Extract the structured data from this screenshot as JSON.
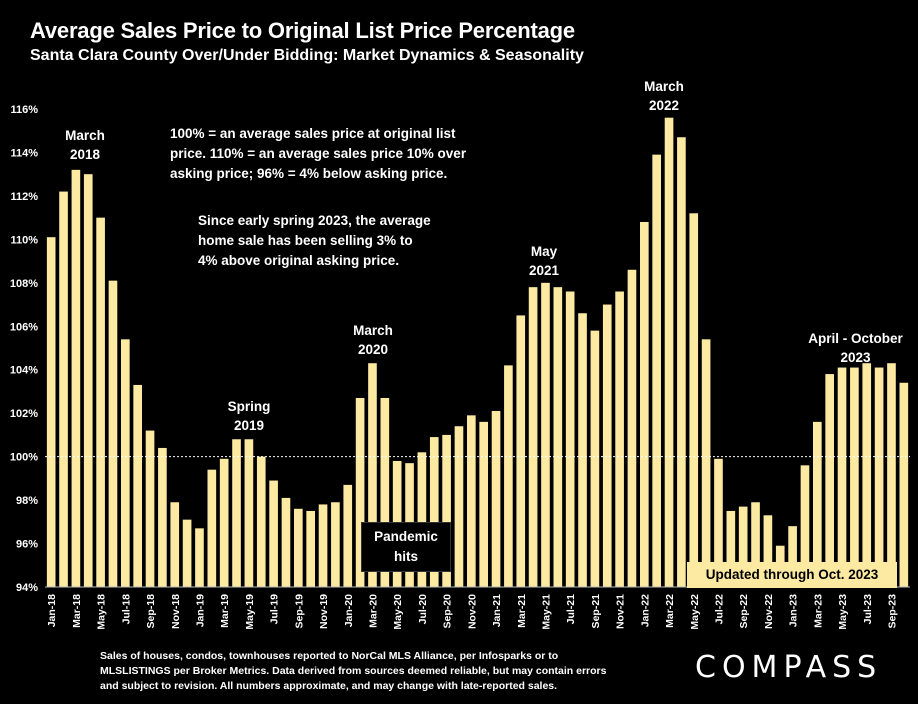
{
  "header": {
    "title": "Average Sales Price to Original List Price Percentage",
    "subtitle": "Santa Clara County Over/Under Bidding: Market Dynamics & Seasonality"
  },
  "annotations": {
    "march_2018": [
      "March",
      "2018"
    ],
    "spring_2019": [
      "Spring",
      "2019"
    ],
    "march_2020": [
      "March",
      "2020"
    ],
    "may_2021": [
      "May",
      "2021"
    ],
    "march_2022": [
      "March",
      "2022"
    ],
    "apr_oct_2023": [
      "April - October",
      "2023"
    ],
    "pandemic": [
      "Pandemic",
      "hits"
    ],
    "updated": "Updated through Oct. 2023"
  },
  "notes": {
    "note1": [
      "100% = an average sales price at original list",
      "price. 110% = an average sales price 10% over",
      "asking price; 96% = 4% below asking price."
    ],
    "note2": [
      "Since early spring 2023, the average",
      "home sale has been selling 3% to",
      "4% above original asking price."
    ]
  },
  "footer": {
    "lines": [
      "Sales of houses, condos, townhouses reported to NorCal MLS Alliance, per Infosparks or to",
      "MLSLISTINGS per Broker Metrics. Data derived from sources deemed reliable, but may contain errors",
      "and subject to revision. All numbers approximate, and may change with late-reported sales."
    ],
    "logo": "COMPASS"
  },
  "chart_data": {
    "type": "bar",
    "title": "Average Sales Price to Original List Price Percentage",
    "subtitle": "Santa Clara County Over/Under Bidding: Market Dynamics & Seasonality",
    "bar_color": "#fce9a2",
    "grid": false,
    "reference_line": 100,
    "ylim": [
      94,
      116
    ],
    "yticks": [
      "94%",
      "96%",
      "98%",
      "100%",
      "102%",
      "104%",
      "106%",
      "108%",
      "110%",
      "112%",
      "114%",
      "116%"
    ],
    "categories": [
      "Jan-18",
      "Feb-18",
      "Mar-18",
      "Apr-18",
      "May-18",
      "Jun-18",
      "Jul-18",
      "Aug-18",
      "Sep-18",
      "Oct-18",
      "Nov-18",
      "Dec-18",
      "Jan-19",
      "Feb-19",
      "Mar-19",
      "Apr-19",
      "May-19",
      "Jun-19",
      "Jul-19",
      "Aug-19",
      "Sep-19",
      "Oct-19",
      "Nov-19",
      "Dec-19",
      "Jan-20",
      "Feb-20",
      "Mar-20",
      "Apr-20",
      "May-20",
      "Jun-20",
      "Jul-20",
      "Aug-20",
      "Sep-20",
      "Oct-20",
      "Nov-20",
      "Dec-20",
      "Jan-21",
      "Feb-21",
      "Mar-21",
      "Apr-21",
      "May-21",
      "Jun-21",
      "Jul-21",
      "Aug-21",
      "Sep-21",
      "Oct-21",
      "Nov-21",
      "Dec-21",
      "Jan-22",
      "Feb-22",
      "Mar-22",
      "Apr-22",
      "May-22",
      "Jun-22",
      "Jul-22",
      "Aug-22",
      "Sep-22",
      "Oct-22",
      "Nov-22",
      "Dec-22",
      "Jan-23",
      "Feb-23",
      "Mar-23",
      "Apr-23",
      "May-23",
      "Jun-23",
      "Jul-23",
      "Aug-23",
      "Sep-23",
      "Oct-23"
    ],
    "xtick_labels": [
      "Jan-18",
      "Mar-18",
      "May-18",
      "Jul-18",
      "Sep-18",
      "Nov-18",
      "Jan-19",
      "Mar-19",
      "May-19",
      "Jul-19",
      "Sep-19",
      "Nov-19",
      "Jan-20",
      "Mar-20",
      "May-20",
      "Jul-20",
      "Sep-20",
      "Nov-20",
      "Jan-21",
      "Mar-21",
      "May-21",
      "Jul-21",
      "Sep-21",
      "Nov-21",
      "Jan-22",
      "Mar-22",
      "May-22",
      "Jul-22",
      "Sep-22",
      "Nov-22",
      "Jan-23",
      "Mar-23",
      "May-23",
      "Jul-23",
      "Sep-23"
    ],
    "values": [
      110.1,
      112.2,
      113.2,
      113.0,
      111.0,
      108.1,
      105.4,
      103.3,
      101.2,
      100.4,
      97.9,
      97.1,
      96.7,
      99.4,
      99.9,
      100.8,
      100.8,
      100.0,
      98.9,
      98.1,
      97.6,
      97.5,
      97.8,
      97.9,
      98.7,
      102.7,
      104.3,
      102.7,
      99.8,
      99.7,
      100.2,
      100.9,
      101.0,
      101.4,
      101.9,
      101.6,
      102.1,
      104.2,
      106.5,
      107.8,
      108.0,
      107.8,
      107.6,
      106.6,
      105.8,
      107.0,
      107.6,
      108.6,
      110.8,
      113.9,
      115.6,
      114.7,
      111.2,
      105.4,
      99.9,
      97.5,
      97.7,
      97.9,
      97.3,
      95.9,
      96.8,
      99.6,
      101.6,
      103.8,
      104.1,
      104.1,
      104.3,
      104.1,
      104.3,
      103.4
    ]
  }
}
